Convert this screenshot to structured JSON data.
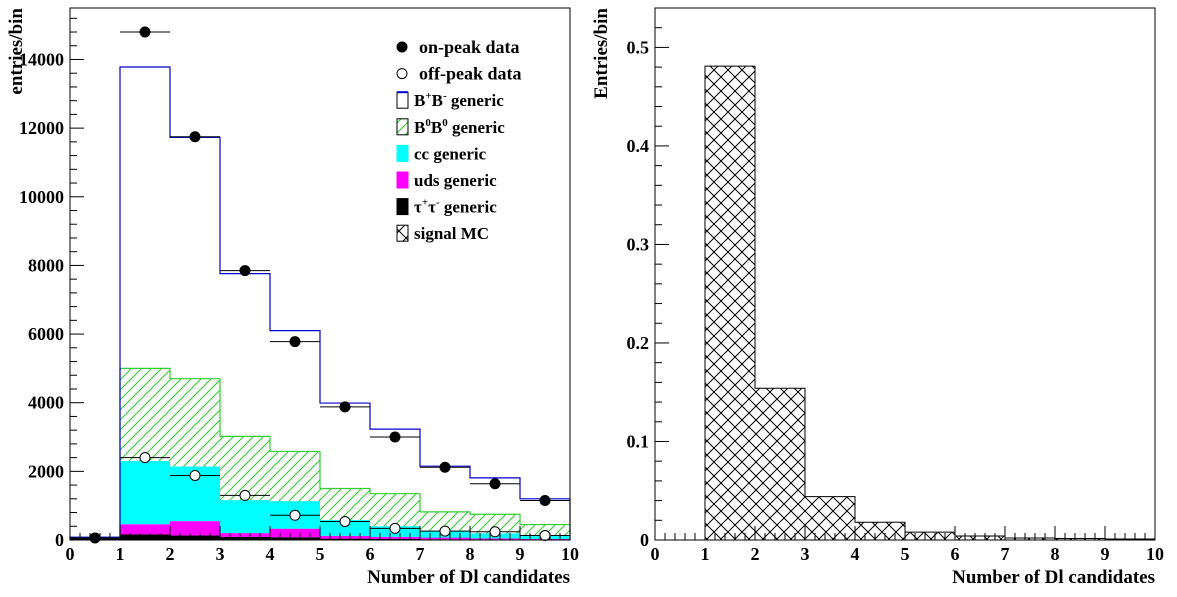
{
  "chart_data": [
    {
      "type": "bar",
      "subtype": "stacked-histogram",
      "xlabel": "Number of Dl candidates",
      "ylabel": "entries/bin",
      "xlim": [
        0,
        10
      ],
      "ylim": [
        0,
        15500
      ],
      "x_ticks": [
        "0",
        "1",
        "2",
        "3",
        "4",
        "5",
        "6",
        "7",
        "8",
        "9",
        "10"
      ],
      "y_ticks": [
        "0",
        "2000",
        "4000",
        "6000",
        "8000",
        "10000",
        "12000",
        "14000"
      ],
      "bins": [
        [
          0,
          1
        ],
        [
          1,
          2
        ],
        [
          2,
          3
        ],
        [
          3,
          4
        ],
        [
          4,
          5
        ],
        [
          5,
          6
        ],
        [
          6,
          7
        ],
        [
          7,
          8
        ],
        [
          8,
          9
        ],
        [
          9,
          10
        ]
      ],
      "legend_position": "top-right",
      "stacked_series": [
        {
          "name": "τ⁺τ⁻ generic",
          "legend_rich": [
            "τ",
            "+",
            "τ",
            "-",
            " generic"
          ],
          "fill": "#000000",
          "pattern": "solid",
          "values": [
            80,
            160,
            130,
            90,
            80,
            40,
            30,
            20,
            15,
            10
          ]
        },
        {
          "name": "uds generic",
          "legend_rich": [
            "uds generic"
          ],
          "fill": "#ff00ff",
          "pattern": "solid",
          "values": [
            0,
            300,
            420,
            110,
            250,
            80,
            60,
            50,
            30,
            20
          ]
        },
        {
          "name": "cc generic",
          "legend_rich": [
            "cc generic"
          ],
          "fill": "#00ffff",
          "pattern": "solid",
          "values": [
            0,
            1840,
            1590,
            960,
            800,
            460,
            310,
            200,
            145,
            110
          ]
        },
        {
          "name": "B⁰B⁰ generic",
          "legend_rich": [
            "B",
            "0",
            "B",
            "0",
            " generic"
          ],
          "fill": "#33cc33",
          "pattern": "hatch",
          "values": [
            0,
            2700,
            2560,
            1860,
            1450,
            920,
            950,
            550,
            560,
            310
          ]
        },
        {
          "name": "B⁺B⁻ generic",
          "legend_rich": [
            "B",
            "+",
            "B",
            "-",
            " generic"
          ],
          "fill": "#ffffff",
          "stroke": "#0000cc",
          "pattern": "outline",
          "values": [
            0,
            8780,
            7030,
            4740,
            3520,
            2490,
            1880,
            1330,
            1060,
            750
          ]
        }
      ],
      "points_series": [
        {
          "name": "on-peak data",
          "marker": "filled-circle",
          "x": [
            0.5,
            1.5,
            2.5,
            3.5,
            4.5,
            5.5,
            6.5,
            7.5,
            8.5,
            9.5
          ],
          "y": [
            60,
            14800,
            11750,
            7850,
            5780,
            3880,
            3000,
            2120,
            1640,
            1150
          ]
        },
        {
          "name": "off-peak data",
          "marker": "open-circle",
          "x": [
            1.5,
            2.5,
            3.5,
            4.5,
            5.5,
            6.5,
            7.5,
            8.5,
            9.5
          ],
          "y": [
            2400,
            1880,
            1300,
            720,
            540,
            340,
            260,
            240,
            130
          ]
        }
      ],
      "legend_entries": [
        {
          "label_rich": [
            "on-peak data"
          ],
          "symbol": "filled-circle"
        },
        {
          "label_rich": [
            "off-peak data"
          ],
          "symbol": "open-circle"
        },
        {
          "label_rich": [
            "B",
            "+",
            "B",
            "-",
            " generic"
          ],
          "symbol": "box-outline"
        },
        {
          "label_rich": [
            "B",
            "0",
            "B",
            "0",
            " generic"
          ],
          "symbol": "box-green-hatch"
        },
        {
          "label_rich": [
            "cc generic"
          ],
          "symbol": "box-cyan"
        },
        {
          "label_rich": [
            "uds generic"
          ],
          "symbol": "box-magenta"
        },
        {
          "label_rich": [
            "τ",
            "+",
            "τ",
            "-",
            " generic"
          ],
          "symbol": "box-black"
        },
        {
          "label_rich": [
            "signal MC"
          ],
          "symbol": "box-crosshatch"
        }
      ]
    },
    {
      "type": "bar",
      "subtype": "histogram",
      "xlabel": "Number of Dl candidates",
      "ylabel": "Entries/bin",
      "xlim": [
        0,
        10
      ],
      "ylim": [
        0,
        0.54
      ],
      "x_ticks": [
        "0",
        "1",
        "2",
        "3",
        "4",
        "5",
        "6",
        "7",
        "8",
        "9",
        "10"
      ],
      "y_ticks": [
        "0",
        "0.1",
        "0.2",
        "0.3",
        "0.4",
        "0.5"
      ],
      "bins": [
        [
          0,
          1
        ],
        [
          1,
          2
        ],
        [
          2,
          3
        ],
        [
          3,
          4
        ],
        [
          4,
          5
        ],
        [
          5,
          6
        ],
        [
          6,
          7
        ],
        [
          7,
          8
        ],
        [
          8,
          9
        ],
        [
          9,
          10
        ]
      ],
      "series": [
        {
          "name": "signal MC",
          "pattern": "crosshatch",
          "values": [
            0,
            0.481,
            0.154,
            0.044,
            0.018,
            0.008,
            0.004,
            0.002,
            0.0015,
            0.001
          ]
        }
      ]
    }
  ]
}
